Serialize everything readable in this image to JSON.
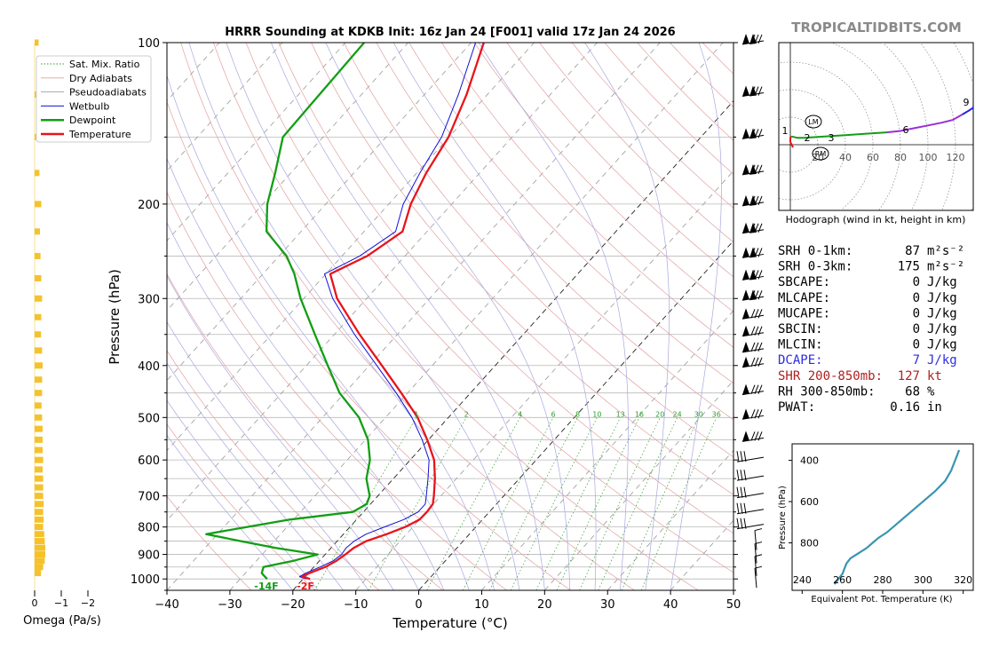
{
  "title": "HRRR Sounding at KDKB Init: 16z Jan 24 [F001] valid 17z Jan 24 2026",
  "watermark": "TROPICALTIDBITS.COM",
  "colors": {
    "temperature": "#e8141b",
    "dewpoint": "#119e14",
    "wetbulb": "#1010d8",
    "omega": "#f5c22c",
    "dcape": "#2d2de0",
    "shear": "#b02020",
    "theta_e": "#3a94b0"
  },
  "axes": {
    "x_label": "Temperature (°C)",
    "y_label": "Pressure (hPa)",
    "x_ticks": [
      "−40",
      "−30",
      "−20",
      "−10",
      "0",
      "10",
      "20",
      "30",
      "40",
      "50"
    ],
    "y_ticks": [
      "100",
      "200",
      "300",
      "400",
      "500",
      "600",
      "700",
      "800",
      "900",
      "1000"
    ],
    "omega_label": "Omega (Pa/s)",
    "omega_ticks": [
      "0",
      "−1",
      "−2"
    ]
  },
  "legend": [
    {
      "label": "Sat. Mix. Ratio",
      "style": "mixing"
    },
    {
      "label": "Dry Adiabats",
      "style": "dry"
    },
    {
      "label": "Pseudoadiabats",
      "style": "moist"
    },
    {
      "label": "Wetbulb",
      "style": "wetbulb"
    },
    {
      "label": "Dewpoint",
      "style": "dewpoint"
    },
    {
      "label": "Temperature",
      "style": "temperature"
    }
  ],
  "mixing_ratio_labels": [
    "1",
    "2",
    "4",
    "6",
    "8",
    "10",
    "13",
    "16",
    "20",
    "24",
    "30",
    "36"
  ],
  "surface_labels": {
    "dewpoint": "-14F",
    "temperature": "-2F"
  },
  "chart_data": {
    "type": "line",
    "title": "HRRR Sounding at KDKB Init: 16z Jan 24 [F001] valid 17z Jan 24 2026",
    "xlabel": "Temperature (°C)",
    "ylabel": "Pressure (hPa)",
    "xlim": [
      -40,
      50
    ],
    "ylim": [
      1050,
      100
    ],
    "y_scale": "log",
    "skew": "skew-T",
    "series": [
      {
        "name": "Temperature",
        "pressure": [
          1000,
          990,
          975,
          950,
          925,
          900,
          875,
          850,
          825,
          800,
          775,
          750,
          725,
          700,
          650,
          600,
          550,
          500,
          450,
          400,
          350,
          300,
          270,
          250,
          225,
          200,
          175,
          150,
          125,
          100
        ],
        "values": [
          -18.9,
          -20.5,
          -19.8,
          -18.2,
          -17.3,
          -16.8,
          -16.4,
          -15.4,
          -13.1,
          -11.2,
          -10.0,
          -9.9,
          -10.1,
          -11.1,
          -13.4,
          -16.2,
          -20.2,
          -24.9,
          -31.0,
          -38.0,
          -46.0,
          -54.7,
          -59.3,
          -56.0,
          -53.9,
          -56.5,
          -58.5,
          -60.1,
          -63.3,
          -68.0
        ]
      },
      {
        "name": "Dewpoint",
        "pressure": [
          1000,
          990,
          975,
          950,
          925,
          900,
          875,
          850,
          825,
          800,
          775,
          750,
          725,
          700,
          650,
          600,
          550,
          500,
          450,
          400,
          350,
          300,
          270,
          250,
          225,
          200,
          175,
          150,
          125,
          100
        ],
        "values": [
          -25.7,
          -26.4,
          -27.4,
          -28.0,
          -24.1,
          -21.2,
          -28.8,
          -35.3,
          -41.8,
          -36.3,
          -30.6,
          -21.7,
          -20.6,
          -21.3,
          -24.3,
          -26.4,
          -29.6,
          -34.2,
          -40.8,
          -46.6,
          -53.1,
          -60.5,
          -65.0,
          -68.8,
          -75.5,
          -79.3,
          -82.5,
          -86.4,
          -86.7,
          -87.0
        ]
      },
      {
        "name": "Wetbulb",
        "pressure": [
          1000,
          990,
          975,
          950,
          925,
          900,
          875,
          850,
          825,
          800,
          775,
          750,
          725,
          700,
          650,
          600,
          550,
          500,
          450,
          400,
          350,
          300,
          270,
          250,
          225,
          200,
          175,
          150,
          125,
          100
        ],
        "values": [
          -19.5,
          -20.9,
          -20.4,
          -19.0,
          -17.8,
          -17.4,
          -17.6,
          -17.3,
          -16.4,
          -14.5,
          -12.5,
          -11.3,
          -11.3,
          -12.3,
          -14.5,
          -17.0,
          -21.0,
          -25.8,
          -31.8,
          -38.8,
          -46.8,
          -55.4,
          -60.2,
          -57.2,
          -55.0,
          -57.7,
          -59.5,
          -61.2,
          -64.6,
          -69.3
        ]
      }
    ],
    "wind_barbs_pressure": [
      100,
      125,
      150,
      175,
      200,
      225,
      250,
      275,
      300,
      325,
      350,
      375,
      400,
      450,
      500,
      550,
      600,
      650,
      700,
      750,
      800,
      850,
      900,
      950,
      1000
    ]
  },
  "omega_data": {
    "pressure": [
      100,
      125,
      150,
      175,
      200,
      225,
      250,
      275,
      300,
      325,
      350,
      375,
      400,
      425,
      450,
      475,
      500,
      525,
      550,
      575,
      600,
      625,
      650,
      675,
      700,
      725,
      750,
      775,
      800,
      825,
      850,
      875,
      900,
      925,
      950,
      975
    ],
    "values": [
      -0.05,
      -0.02,
      0.0,
      -0.08,
      -0.15,
      -0.1,
      -0.12,
      -0.15,
      -0.18,
      -0.15,
      -0.14,
      -0.18,
      -0.2,
      -0.18,
      -0.18,
      -0.16,
      -0.18,
      -0.2,
      -0.2,
      -0.2,
      -0.22,
      -0.2,
      -0.22,
      -0.22,
      -0.22,
      -0.24,
      -0.22,
      -0.24,
      -0.22,
      -0.26,
      -0.28,
      -0.3,
      -0.3,
      -0.28,
      -0.22,
      -0.14
    ]
  },
  "hodograph": {
    "caption": "Hodograph (wind in kt, height in km)",
    "ring_labels": [
      "20",
      "40",
      "60",
      "80",
      "100",
      "120"
    ],
    "storm_motion_labels": [
      "LM",
      "RM"
    ],
    "height_labels": [
      "1",
      "2",
      "3",
      "6",
      "9"
    ],
    "points_u": [
      2,
      0,
      0,
      1,
      5,
      10,
      25,
      40,
      55,
      70,
      80,
      90,
      100,
      110,
      118,
      125,
      130,
      133,
      133,
      135
    ],
    "points_v": [
      -2,
      2,
      5,
      6,
      5,
      5,
      6,
      7,
      8,
      9,
      10,
      12,
      14,
      16,
      18,
      22,
      25,
      27,
      28,
      28
    ],
    "colors": [
      "#e8141b",
      "#119e14",
      "#9a2ed8",
      "#2020e0"
    ]
  },
  "indices": [
    {
      "label": "SRH 0-1km:",
      "value": "87",
      "unit": "m²s⁻²",
      "color": "#000000"
    },
    {
      "label": "SRH 0-3km:",
      "value": "175",
      "unit": "m²s⁻²",
      "color": "#000000"
    },
    {
      "label": "SBCAPE:",
      "value": "0",
      "unit": "J/kg",
      "color": "#000000"
    },
    {
      "label": "MLCAPE:",
      "value": "0",
      "unit": "J/kg",
      "color": "#000000"
    },
    {
      "label": "MUCAPE:",
      "value": "0",
      "unit": "J/kg",
      "color": "#000000"
    },
    {
      "label": "SBCIN:",
      "value": "0",
      "unit": "J/kg",
      "color": "#000000"
    },
    {
      "label": "MLCIN:",
      "value": "0",
      "unit": "J/kg",
      "color": "#000000"
    },
    {
      "label": "DCAPE:",
      "value": "7",
      "unit": "J/kg",
      "color": "#2d2de0"
    },
    {
      "label": "SHR 200-850mb:",
      "value": "127",
      "unit": "kt",
      "color": "#b02020"
    },
    {
      "label": "RH 300-850mb:",
      "value": "68",
      "unit": "%",
      "color": "#000000"
    },
    {
      "label": "PWAT:",
      "value": "0.16",
      "unit": "in",
      "color": "#000000"
    }
  ],
  "theta_e": {
    "xlabel": "Equivalent Pot. Temperature (K)",
    "ylabel": "Pressure (hPa)",
    "x_ticks": [
      "240",
      "260",
      "280",
      "300",
      "320"
    ],
    "y_ticks": [
      "400",
      "600",
      "800"
    ],
    "chart_data": {
      "type": "line",
      "x": [
        256,
        257,
        258,
        260,
        261,
        262,
        264,
        268,
        272,
        275,
        278,
        282,
        288,
        294,
        300,
        306,
        311,
        314,
        316,
        318
      ],
      "y": [
        1000,
        990,
        975,
        950,
        925,
        900,
        875,
        850,
        825,
        800,
        775,
        750,
        700,
        650,
        600,
        550,
        500,
        450,
        400,
        350
      ],
      "xlim": [
        235,
        325
      ],
      "ylim": [
        1030,
        320
      ]
    }
  }
}
